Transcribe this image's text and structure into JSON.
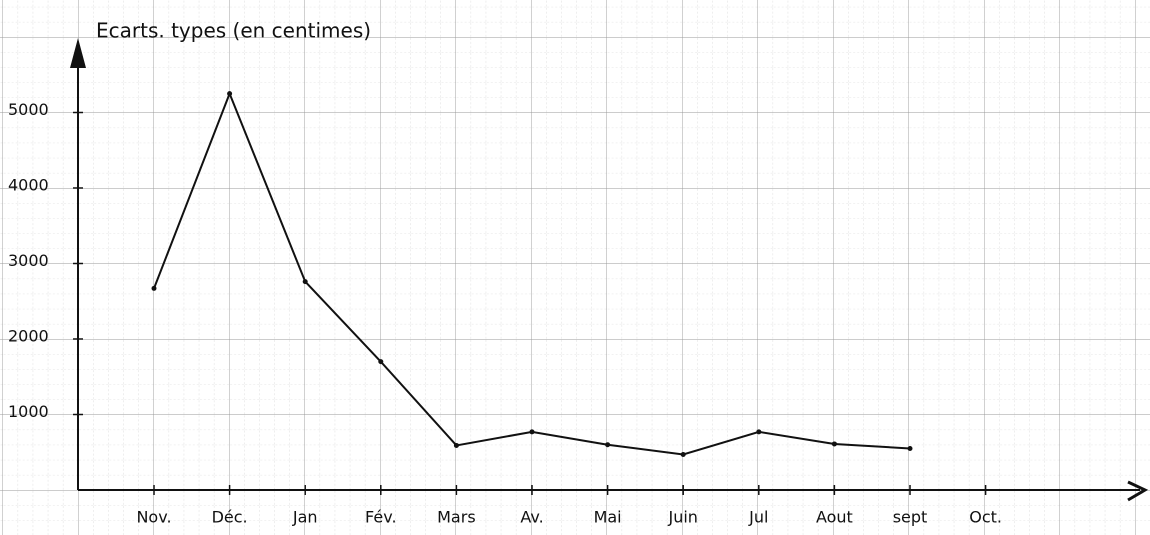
{
  "chart_data": {
    "type": "line",
    "title": "Ecarts. types (en centimes)",
    "categories": [
      "Nov.",
      "Déc.",
      "Jan",
      "Fév.",
      "Mars",
      "Av.",
      "Mai",
      "Juin",
      "Jul",
      "Aout",
      "sept",
      "Oct."
    ],
    "values": [
      2670,
      5250,
      2760,
      1700,
      590,
      770,
      600,
      470,
      770,
      610,
      550,
      null
    ],
    "color": "#111111",
    "ylim": [
      0,
      6000
    ],
    "yticks": [
      1000,
      2000,
      3000,
      4000,
      5000
    ],
    "grid": true
  }
}
